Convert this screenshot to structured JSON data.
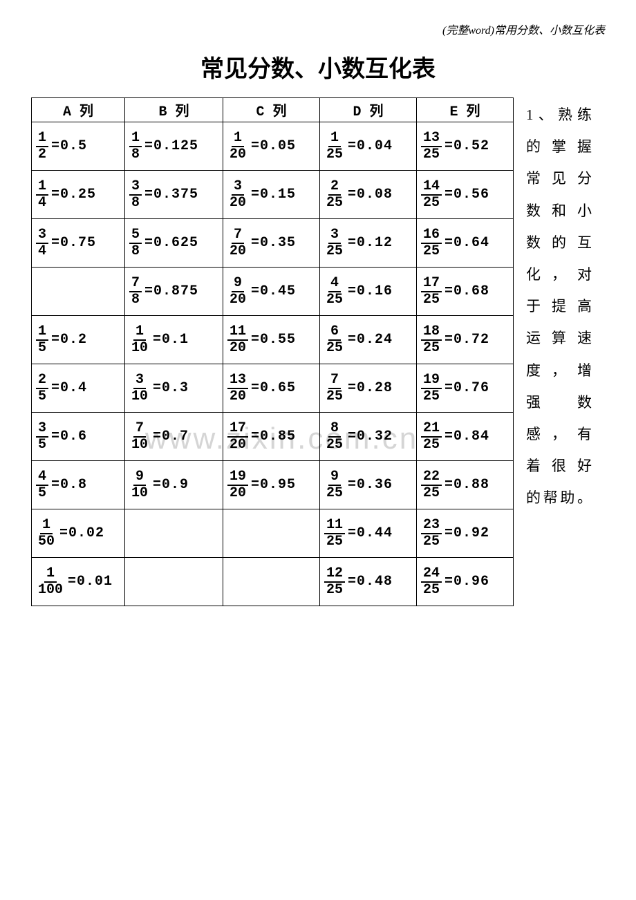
{
  "header_note": "(完整word)常用分数、小数互化表",
  "title": "常见分数、小数互化表",
  "watermark": "www.zixin.com.cn",
  "table": {
    "headers": [
      "A 列",
      "B 列",
      "C 列",
      "D 列",
      "E 列"
    ],
    "col_classes": [
      "col-a",
      "col-b",
      "col-c",
      "col-d",
      "col-e"
    ],
    "rows": [
      [
        {
          "num": "1",
          "den": "2",
          "val": "0.5"
        },
        {
          "num": "1",
          "den": "8",
          "val": "0.125"
        },
        {
          "num": "1",
          "den": "20",
          "val": "0.05"
        },
        {
          "num": "1",
          "den": "25",
          "val": "0.04"
        },
        {
          "num": "13",
          "den": "25",
          "val": "0.52"
        }
      ],
      [
        {
          "num": "1",
          "den": "4",
          "val": "0.25"
        },
        {
          "num": "3",
          "den": "8",
          "val": "0.375"
        },
        {
          "num": "3",
          "den": "20",
          "val": "0.15"
        },
        {
          "num": "2",
          "den": "25",
          "val": "0.08"
        },
        {
          "num": "14",
          "den": "25",
          "val": "0.56"
        }
      ],
      [
        {
          "num": "3",
          "den": "4",
          "val": "0.75"
        },
        {
          "num": "5",
          "den": "8",
          "val": "0.625"
        },
        {
          "num": "7",
          "den": "20",
          "val": "0.35"
        },
        {
          "num": "3",
          "den": "25",
          "val": "0.12"
        },
        {
          "num": "16",
          "den": "25",
          "val": "0.64"
        }
      ],
      [
        null,
        {
          "num": "7",
          "den": "8",
          "val": "0.875"
        },
        {
          "num": "9",
          "den": "20",
          "val": "0.45"
        },
        {
          "num": "4",
          "den": "25",
          "val": "0.16"
        },
        {
          "num": "17",
          "den": "25",
          "val": "0.68"
        }
      ],
      [
        {
          "num": "1",
          "den": "5",
          "val": "0.2"
        },
        {
          "num": "1",
          "den": "10",
          "val": "0.1"
        },
        {
          "num": "11",
          "den": "20",
          "val": "0.55"
        },
        {
          "num": "6",
          "den": "25",
          "val": "0.24"
        },
        {
          "num": "18",
          "den": "25",
          "val": "0.72"
        }
      ],
      [
        {
          "num": "2",
          "den": "5",
          "val": "0.4"
        },
        {
          "num": "3",
          "den": "10",
          "val": "0.3"
        },
        {
          "num": "13",
          "den": "20",
          "val": "0.65"
        },
        {
          "num": "7",
          "den": "25",
          "val": "0.28"
        },
        {
          "num": "19",
          "den": "25",
          "val": "0.76"
        }
      ],
      [
        {
          "num": "3",
          "den": "5",
          "val": "0.6"
        },
        {
          "num": "7",
          "den": "10",
          "val": "0.7"
        },
        {
          "num": "17",
          "den": "20",
          "val": "0.85"
        },
        {
          "num": "8",
          "den": "25",
          "val": "0.32"
        },
        {
          "num": "21",
          "den": "25",
          "val": "0.84"
        }
      ],
      [
        {
          "num": "4",
          "den": "5",
          "val": "0.8"
        },
        {
          "num": "9",
          "den": "10",
          "val": "0.9"
        },
        {
          "num": "19",
          "den": "20",
          "val": "0.95"
        },
        {
          "num": "9",
          "den": "25",
          "val": "0.36"
        },
        {
          "num": "22",
          "den": "25",
          "val": "0.88"
        }
      ],
      [
        {
          "num": "1",
          "den": "50",
          "val": "0.02"
        },
        null,
        null,
        {
          "num": "11",
          "den": "25",
          "val": "0.44"
        },
        {
          "num": "23",
          "den": "25",
          "val": "0.92"
        }
      ],
      [
        {
          "num": "1",
          "den": "100",
          "val": "0.01"
        },
        null,
        null,
        {
          "num": "12",
          "den": "25",
          "val": "0.48"
        },
        {
          "num": "24",
          "den": "25",
          "val": "0.96"
        }
      ]
    ]
  },
  "side_text": {
    "lines": [
      "1、熟练",
      "的掌握",
      "常见分",
      "数和小",
      "数的互",
      "化，对",
      "于提高",
      "运算速",
      "度，增",
      "强　数",
      "感，有",
      "着很好",
      "的帮助。"
    ]
  },
  "colors": {
    "text": "#000000",
    "bg": "#ffffff",
    "border": "#000000",
    "watermark": "#d5d5d5"
  }
}
